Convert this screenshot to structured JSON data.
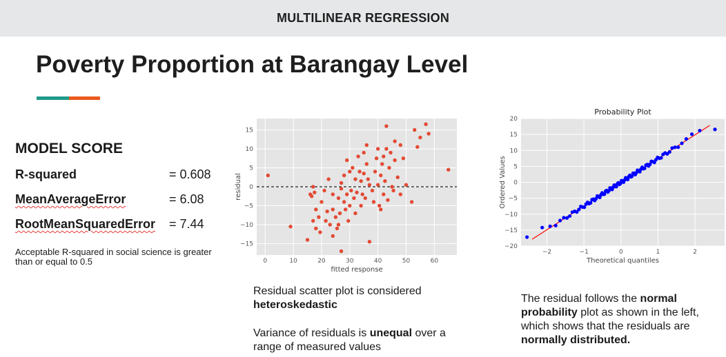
{
  "header": {
    "title": "MULTILINEAR REGRESSION"
  },
  "page": {
    "title": "Poverty Proportion at Barangay Level"
  },
  "colors": {
    "accent_teal": "#1f9a8a",
    "accent_orange": "#ea5a1c",
    "residual_points": "#e24a33",
    "qq_points": "#0000ff",
    "qq_line": "#ff0000",
    "plot_bg": "#e5e5e5"
  },
  "model_score": {
    "heading": "MODEL SCORE",
    "metrics": [
      {
        "name": "R-squared",
        "value": "= 0.608"
      },
      {
        "name": "MeanAverageError",
        "value": "= 6.08"
      },
      {
        "name": "RootMeanSquaredError",
        "value": "= 7.44"
      }
    ],
    "note": "Acceptable R-squared in social science is greater than or equal to 0.5"
  },
  "captions": {
    "residual_line1": "Residual scatter plot is considered",
    "residual_bold1": "heteroskedastic",
    "residual_line2_pre": "Variance of residuals is",
    "residual_bold2": "unequal",
    "residual_line2_post": "over a range of measured values",
    "qq_pre": "The residual follows the",
    "qq_bold1": "normal probability",
    "qq_mid": "plot as shown in the left, which shows that the residuals are",
    "qq_bold2": "normally distributed."
  },
  "chart_data": [
    {
      "type": "scatter",
      "title": "",
      "xlabel": "fitted response",
      "ylabel": "residual",
      "xlim": [
        -3,
        68
      ],
      "ylim": [
        -18,
        18
      ],
      "xticks": [
        0,
        10,
        20,
        30,
        40,
        50,
        60
      ],
      "yticks": [
        -15,
        -10,
        -5,
        0,
        5,
        10,
        15
      ],
      "grid": true,
      "reference_line": {
        "y": 0,
        "style": "dashed"
      },
      "points": [
        [
          1,
          3
        ],
        [
          9,
          -10.5
        ],
        [
          15,
          -14
        ],
        [
          16,
          -2
        ],
        [
          16.5,
          -2.5
        ],
        [
          17,
          0
        ],
        [
          17.5,
          -1.5
        ],
        [
          17,
          -9
        ],
        [
          18,
          -6
        ],
        [
          18,
          -11
        ],
        [
          19,
          -8
        ],
        [
          19.5,
          -12
        ],
        [
          20,
          -4
        ],
        [
          21,
          -1
        ],
        [
          21.5,
          -9
        ],
        [
          22,
          -6.5
        ],
        [
          22.5,
          2
        ],
        [
          23,
          -10
        ],
        [
          24,
          -2
        ],
        [
          24,
          -13
        ],
        [
          25,
          -8
        ],
        [
          25.5,
          -11
        ],
        [
          26,
          -3
        ],
        [
          26.5,
          -7
        ],
        [
          27,
          1
        ],
        [
          27,
          -0.5
        ],
        [
          28,
          3
        ],
        [
          28,
          -4
        ],
        [
          28.5,
          -6
        ],
        [
          29,
          7
        ],
        [
          29,
          -2
        ],
        [
          29.5,
          -9
        ],
        [
          30,
          4
        ],
        [
          30,
          -5
        ],
        [
          30.5,
          -1
        ],
        [
          31,
          5
        ],
        [
          31.5,
          -3
        ],
        [
          32,
          2
        ],
        [
          32,
          -7
        ],
        [
          32.5,
          -1.5
        ],
        [
          33,
          8
        ],
        [
          33.5,
          4
        ],
        [
          34,
          1.5
        ],
        [
          34,
          -5
        ],
        [
          34.5,
          -2
        ],
        [
          35,
          9
        ],
        [
          35,
          3.5
        ],
        [
          35.5,
          -3
        ],
        [
          36,
          6
        ],
        [
          36,
          11
        ],
        [
          36.5,
          2
        ],
        [
          37,
          0.5
        ],
        [
          37,
          -14.5
        ],
        [
          38,
          -1
        ],
        [
          38.5,
          -4
        ],
        [
          39,
          4
        ],
        [
          39.5,
          7.5
        ],
        [
          40,
          10
        ],
        [
          40,
          0.5
        ],
        [
          40.5,
          -5
        ],
        [
          41,
          3
        ],
        [
          41,
          -6
        ],
        [
          41.5,
          6
        ],
        [
          42,
          8
        ],
        [
          42,
          -2
        ],
        [
          42.5,
          1.5
        ],
        [
          43,
          16
        ],
        [
          43,
          10
        ],
        [
          43.5,
          -3.5
        ],
        [
          44,
          5
        ],
        [
          44.5,
          9
        ],
        [
          45,
          0
        ],
        [
          45.5,
          -1
        ],
        [
          46,
          12
        ],
        [
          46,
          7
        ],
        [
          47,
          2.5
        ],
        [
          48,
          11
        ],
        [
          48,
          -2
        ],
        [
          49,
          7.5
        ],
        [
          50,
          0.5
        ],
        [
          52,
          -4
        ],
        [
          53,
          15
        ],
        [
          54,
          10.5
        ],
        [
          55,
          13
        ],
        [
          57,
          16.5
        ],
        [
          58,
          14
        ],
        [
          27,
          -17
        ],
        [
          65,
          4.5
        ],
        [
          24,
          -6
        ],
        [
          26,
          -10
        ]
      ]
    },
    {
      "type": "scatter",
      "title": "Probability Plot",
      "xlabel": "Theoretical quantiles",
      "ylabel": "Ordered Values",
      "xlim": [
        -2.7,
        2.8
      ],
      "ylim": [
        -20,
        20
      ],
      "xticks": [
        -2,
        -1,
        0,
        1,
        2
      ],
      "yticks": [
        -20,
        -15,
        -10,
        -5,
        0,
        5,
        10,
        15,
        20
      ],
      "grid": true,
      "fit_line": {
        "slope": 7.44,
        "intercept": 0.0,
        "color": "#ff0000"
      },
      "points_range": {
        "x": [
          -2.4,
          2.4
        ],
        "y": [
          -17.5,
          16.5
        ]
      }
    }
  ]
}
